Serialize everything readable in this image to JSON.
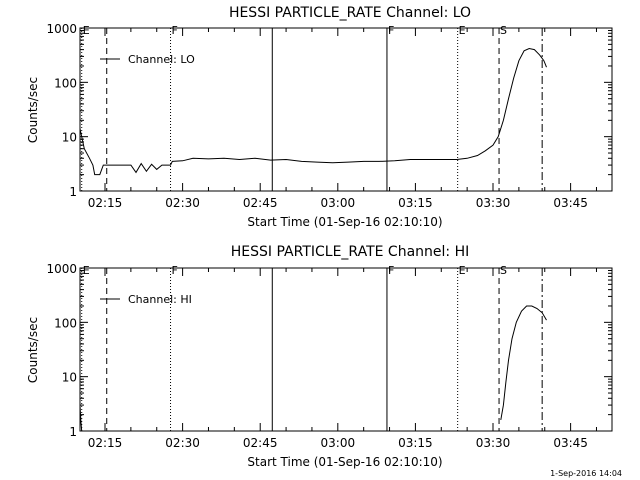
{
  "chart_data": [
    {
      "type": "line",
      "title": "HESSI PARTICLE_RATE Channel: LO",
      "xlabel": "Start Time (01-Sep-16 02:10:10)",
      "ylabel": "Counts/sec",
      "yscale": "log",
      "xlim": [
        "02:10:10",
        "03:53:00"
      ],
      "ylim": [
        1,
        1000
      ],
      "x_ticks": [
        "02:15",
        "02:30",
        "02:45",
        "03:00",
        "03:15",
        "03:30",
        "03:45"
      ],
      "y_ticks": [
        "1",
        "10",
        "100",
        "1000"
      ],
      "legend": {
        "label": "Channel: LO",
        "placement": "top-left"
      },
      "markers": [
        {
          "time": "02:10:30",
          "label": "E",
          "style": "dotted"
        },
        {
          "time": "02:15:20",
          "label": "",
          "style": "dashed"
        },
        {
          "time": "02:27:40",
          "label": "F",
          "style": "dotted"
        },
        {
          "time": "02:47:20",
          "label": "",
          "style": "solid"
        },
        {
          "time": "03:09:30",
          "label": "F",
          "style": "solid"
        },
        {
          "time": "03:23:10",
          "label": "E",
          "style": "dotted"
        },
        {
          "time": "03:31:10",
          "label": "S",
          "style": "dashed"
        },
        {
          "time": "03:39:30",
          "label": "",
          "style": "dashdot"
        }
      ],
      "series": [
        {
          "name": "Channel: LO",
          "points": [
            [
              "02:10:10",
              14
            ],
            [
              "02:11:00",
              6
            ],
            [
              "02:12:00",
              4
            ],
            [
              "02:12:40",
              3
            ],
            [
              "02:13:00",
              2
            ],
            [
              "02:14:00",
              2
            ],
            [
              "02:14:40",
              3
            ],
            [
              "02:17:00",
              3
            ],
            [
              "02:19:00",
              3
            ],
            [
              "02:20:00",
              3
            ],
            [
              "02:21:00",
              2.2
            ],
            [
              "02:22:00",
              3.2
            ],
            [
              "02:23:00",
              2.3
            ],
            [
              "02:24:00",
              3.1
            ],
            [
              "02:25:00",
              2.5
            ],
            [
              "02:26:00",
              3
            ],
            [
              "02:27:40",
              3
            ],
            [
              "02:28:00",
              3.5
            ],
            [
              "02:30:00",
              3.6
            ],
            [
              "02:32:00",
              4
            ],
            [
              "02:35:00",
              3.9
            ],
            [
              "02:38:00",
              4
            ],
            [
              "02:41:00",
              3.8
            ],
            [
              "02:44:00",
              4
            ],
            [
              "02:47:00",
              3.7
            ],
            [
              "02:50:00",
              3.8
            ],
            [
              "02:53:00",
              3.5
            ],
            [
              "02:56:00",
              3.4
            ],
            [
              "02:59:00",
              3.3
            ],
            [
              "03:02:00",
              3.4
            ],
            [
              "03:05:00",
              3.5
            ],
            [
              "03:08:00",
              3.5
            ],
            [
              "03:11:00",
              3.6
            ],
            [
              "03:14:00",
              3.8
            ],
            [
              "03:17:00",
              3.8
            ],
            [
              "03:20:00",
              3.8
            ],
            [
              "03:23:00",
              3.8
            ],
            [
              "03:25:00",
              4
            ],
            [
              "03:27:00",
              4.5
            ],
            [
              "03:28:30",
              5.5
            ],
            [
              "03:30:00",
              7
            ],
            [
              "03:31:00",
              10
            ],
            [
              "03:32:00",
              20
            ],
            [
              "03:33:00",
              50
            ],
            [
              "03:34:00",
              120
            ],
            [
              "03:35:00",
              250
            ],
            [
              "03:36:00",
              380
            ],
            [
              "03:37:00",
              420
            ],
            [
              "03:38:00",
              400
            ],
            [
              "03:39:00",
              320
            ],
            [
              "03:39:50",
              250
            ],
            [
              "03:40:20",
              190
            ]
          ]
        }
      ]
    },
    {
      "type": "line",
      "title": "HESSI PARTICLE_RATE Channel: HI",
      "xlabel": "Start Time (01-Sep-16 02:10:10)",
      "ylabel": "Counts/sec",
      "yscale": "log",
      "xlim": [
        "02:10:10",
        "03:53:00"
      ],
      "ylim": [
        1,
        1000
      ],
      "x_ticks": [
        "02:15",
        "02:30",
        "02:45",
        "03:00",
        "03:15",
        "03:30",
        "03:45"
      ],
      "y_ticks": [
        "1",
        "10",
        "100",
        "1000"
      ],
      "legend": {
        "label": "Channel: HI",
        "placement": "top-left"
      },
      "markers": [
        {
          "time": "02:10:30",
          "label": "E",
          "style": "dotted"
        },
        {
          "time": "02:15:20",
          "label": "",
          "style": "dashed"
        },
        {
          "time": "02:27:40",
          "label": "F",
          "style": "dotted"
        },
        {
          "time": "02:47:20",
          "label": "",
          "style": "solid"
        },
        {
          "time": "03:09:30",
          "label": "F",
          "style": "solid"
        },
        {
          "time": "03:23:10",
          "label": "E",
          "style": "dotted"
        },
        {
          "time": "03:31:10",
          "label": "S",
          "style": "dashed"
        },
        {
          "time": "03:39:30",
          "label": "",
          "style": "dashdot"
        }
      ],
      "series": [
        {
          "name": "Channel: HI",
          "points": [
            [
              "02:10:10",
              3
            ],
            [
              "02:10:20",
              1.5
            ],
            [
              "02:10:30",
              1
            ]
          ]
        },
        {
          "name": "Channel: HI",
          "points": [
            [
              "03:31:30",
              1.6
            ],
            [
              "03:32:00",
              3
            ],
            [
              "03:32:30",
              8
            ],
            [
              "03:33:00",
              20
            ],
            [
              "03:33:40",
              50
            ],
            [
              "03:34:30",
              100
            ],
            [
              "03:35:30",
              160
            ],
            [
              "03:36:30",
              200
            ],
            [
              "03:37:30",
              200
            ],
            [
              "03:38:30",
              180
            ],
            [
              "03:39:30",
              150
            ],
            [
              "03:40:20",
              110
            ]
          ]
        }
      ]
    }
  ],
  "footer": {
    "timestamp": "1-Sep-2016 14:04"
  }
}
